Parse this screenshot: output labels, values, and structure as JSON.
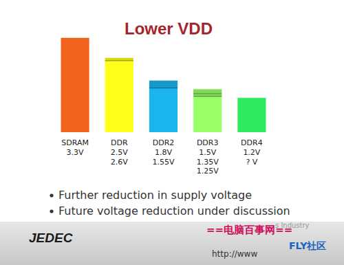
{
  "chart_data": {
    "type": "bar",
    "title": "Lower VDD",
    "categories": [
      "SDRAM",
      "DDR",
      "DDR2",
      "DDR3",
      "DDR4"
    ],
    "values": [
      3.3,
      2.6,
      1.8,
      1.5,
      1.2
    ],
    "colors": [
      "#f2641e",
      "#ffff1a",
      "#1ab4ee",
      "#99ff66",
      "#2eea5c"
    ],
    "voltages": [
      [
        {
          "value": 3.3,
          "label": "3.3V"
        }
      ],
      [
        {
          "value": 2.5,
          "label": "2.5V"
        },
        {
          "value": 2.6,
          "label": "2.6V"
        }
      ],
      [
        {
          "value": 1.8,
          "label": "1.8V"
        },
        {
          "value": 1.55,
          "label": "1.55V"
        }
      ],
      [
        {
          "value": 1.5,
          "label": "1.5V"
        },
        {
          "value": 1.35,
          "label": "1.35V"
        },
        {
          "value": 1.25,
          "label": "1.25V"
        }
      ],
      [
        {
          "value": 1.2,
          "label": "1.2V"
        },
        {
          "value": null,
          "label": "? V"
        }
      ]
    ],
    "ylim": [
      0,
      3.3
    ],
    "tick_labels": "x",
    "annotations": [
      "Further reduction in supply voltage",
      "Future voltage reduction under discussion"
    ],
    "footer": "JEDEC",
    "watermark": [
      "s Industry",
      "==电脑百事网==",
      "FLY社区",
      "http://www"
    ]
  }
}
